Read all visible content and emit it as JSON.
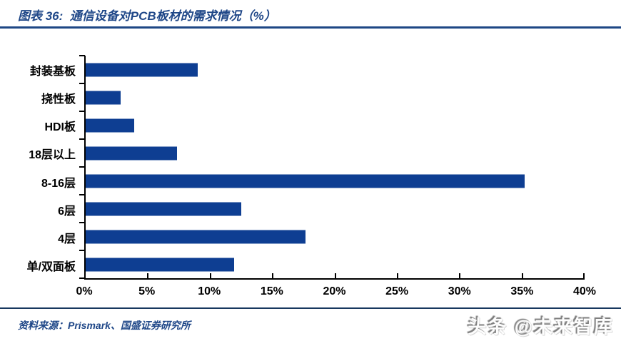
{
  "header": {
    "title": "图表 36:  通信设备对PCB板材的需求情况（%）"
  },
  "footer": {
    "source": "资料来源：Prismark、国盛证券研究所",
    "watermark": "头条 @未来智库"
  },
  "colors": {
    "bar": "#0E3E92",
    "title_text": "#1F4788",
    "header_rule": "#1E4785",
    "footer_rule": "#17375E",
    "axis": "#000000"
  },
  "chart_data": {
    "type": "bar",
    "orientation": "horizontal",
    "title": "通信设备对PCB板材的需求情况（%）",
    "categories": [
      "封装基板",
      "挠性板",
      "HDI板",
      "18层以上",
      "8-16层",
      "6层",
      "4层",
      "单/双面板"
    ],
    "values": [
      9.0,
      2.8,
      3.9,
      7.3,
      35.2,
      12.5,
      17.6,
      11.9
    ],
    "unit": "%",
    "xlabel": "",
    "ylabel": "",
    "xlim": [
      0,
      40
    ],
    "x_tick_labels": [
      "0%",
      "5%",
      "10%",
      "15%",
      "20%",
      "25%",
      "30%",
      "35%",
      "40%"
    ],
    "grid": false,
    "legend": false,
    "bar_color": "#0E3E92"
  }
}
